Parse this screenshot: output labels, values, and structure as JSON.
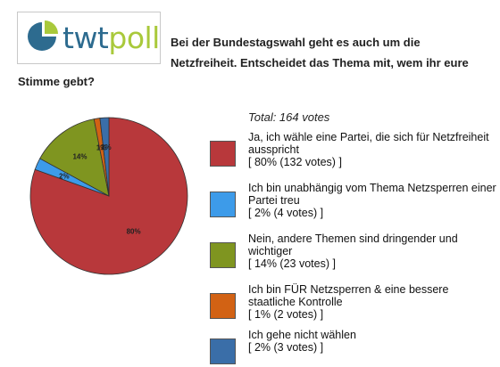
{
  "logo": {
    "brand_left": "twt",
    "brand_right": "poll"
  },
  "question": {
    "line1": "Bei der Bundestagswahl geht es auch um die",
    "line2": "Netzfreiheit. Entscheidet das Thema mit, wem ihr eure",
    "line3": "Stimme gebt?"
  },
  "total_label": "Total: 164 votes",
  "chart_data": {
    "type": "pie",
    "title": "Bei der Bundestagswahl geht es auch um die Netzfreiheit. Entscheidet das Thema mit, wem ihr eure Stimme gebt?",
    "total": "Total: 164 votes",
    "slices": [
      {
        "label": "Ja, ich wähle eine Partei, die sich für Netzfreiheit ausspricht",
        "percent": 80,
        "votes": 132,
        "color": "#b8383b",
        "pct_label": "80%",
        "stats": "[ 80% (132 votes) ]"
      },
      {
        "label": "Ich bin unabhängig vom Thema Netzsperren einer Partei treu",
        "percent": 2,
        "votes": 4,
        "color": "#3d9be9",
        "pct_label": "2%",
        "stats": "[ 2% (4 votes) ]"
      },
      {
        "label": "Nein, andere Themen sind dringender und wichtiger",
        "percent": 14,
        "votes": 23,
        "color": "#7f9520",
        "pct_label": "14%",
        "stats": "[ 14% (23 votes) ]"
      },
      {
        "label": "Ich bin FÜR Netzsperren & eine bessere staatliche Kontrolle",
        "percent": 1,
        "votes": 2,
        "color": "#d26214",
        "pct_label": "1%",
        "stats": "[ 1% (2 votes) ]"
      },
      {
        "label": "Ich gehe nicht wählen",
        "percent": 2,
        "votes": 3,
        "color": "#3a6ea8",
        "pct_label": "2%",
        "stats": "[ 2% (3 votes) ]"
      }
    ]
  }
}
